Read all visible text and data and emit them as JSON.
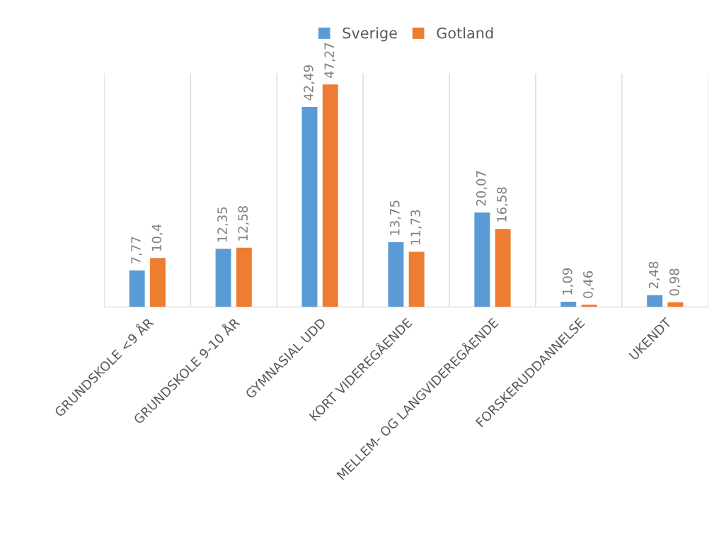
{
  "chart_data": {
    "type": "bar",
    "categories": [
      "GRUNDSKOLE <9 ÅR",
      "GRUNDSKOLE 9-10 ÅR",
      "GYMNASIAL UDD",
      "KORT VIDEREGÅENDE",
      "MELLEM- OG LANGVIDEREGÅENDE",
      "FORSKERUDDANNELSE",
      "UKENDT"
    ],
    "series": [
      {
        "name": "Sverige",
        "color": "#5b9bd5",
        "values": [
          7.77,
          12.35,
          42.49,
          13.75,
          20.07,
          1.09,
          2.48
        ],
        "value_labels": [
          "7,77",
          "12,35",
          "42,49",
          "13,75",
          "20,07",
          "1,09",
          "2,48"
        ]
      },
      {
        "name": "Gotland",
        "color": "#ed7d31",
        "values": [
          10.4,
          12.58,
          47.27,
          11.73,
          16.58,
          0.46,
          0.98
        ],
        "value_labels": [
          "10,4",
          "12,58",
          "47,27",
          "11,73",
          "16,58",
          "0,46",
          "0,98"
        ]
      }
    ],
    "grid": "x",
    "legend": "top",
    "tick_labels": "x"
  }
}
